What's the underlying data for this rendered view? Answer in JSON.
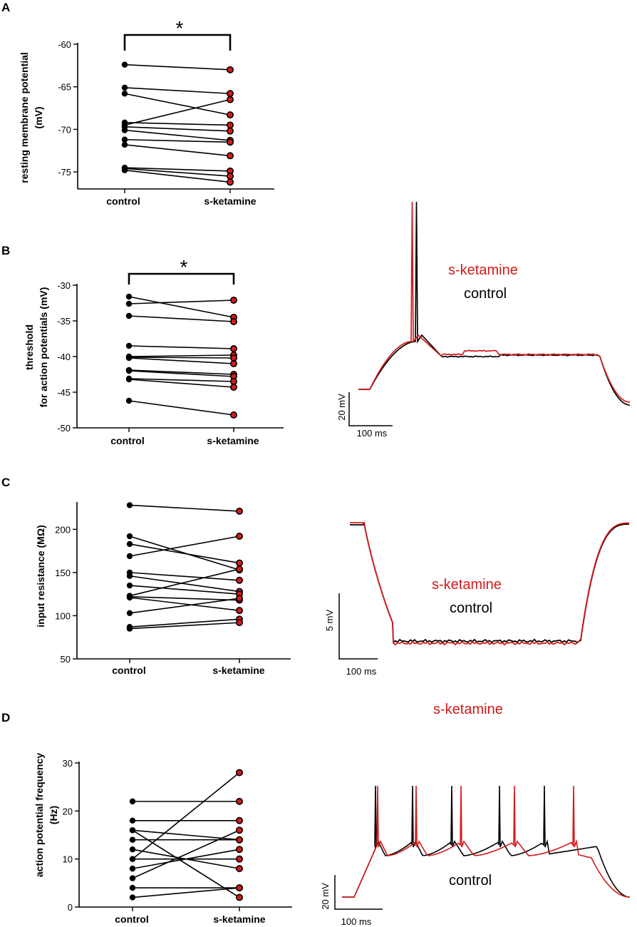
{
  "colors": {
    "control": "#000000",
    "ketamine": "#d41a1a"
  },
  "panels": [
    {
      "id": "A",
      "letter": "A",
      "ylabel_lines": [
        "resting membrane potential",
        "(mV)"
      ],
      "categories": [
        "control",
        "s-ketamine"
      ],
      "significance": "*"
    },
    {
      "id": "B",
      "letter": "B",
      "ylabel_lines": [
        "threshold",
        "for action potentials (mV)"
      ],
      "categories": [
        "control",
        "s-ketamine"
      ],
      "significance": "*"
    },
    {
      "id": "C",
      "letter": "C",
      "ylabel_lines": [
        "input resistance (MΩ)"
      ],
      "categories": [
        "control",
        "s-ketamine"
      ],
      "significance": ""
    },
    {
      "id": "D",
      "letter": "D",
      "ylabel_lines": [
        "action potential frequency",
        "(Hz)"
      ],
      "categories": [
        "control",
        "s-ketamine"
      ],
      "significance": ""
    }
  ],
  "traces": [
    {
      "id": "B",
      "legend_ketamine": "s-ketamine",
      "legend_control": "control",
      "scale_y": "20 mV",
      "scale_x": "100 ms"
    },
    {
      "id": "C",
      "legend_ketamine": "s-ketamine",
      "legend_control": "control",
      "scale_y": "5 mV",
      "scale_x": "100 ms"
    },
    {
      "id": "D",
      "legend_ketamine": "s-ketamine",
      "legend_control": "control",
      "scale_y": "20 mV",
      "scale_x": "100 ms"
    }
  ],
  "chart_data": [
    {
      "type": "scatter",
      "title": "A",
      "xlabel": "",
      "ylabel": "resting membrane potential (mV)",
      "categories": [
        "control",
        "s-ketamine"
      ],
      "ylim": [
        -77,
        -60
      ],
      "yticks": [
        -75,
        -70,
        -65,
        -60
      ],
      "paired_values": [
        [
          -62.4,
          -63.0
        ],
        [
          -65.1,
          -65.8
        ],
        [
          -65.8,
          -68.3
        ],
        [
          -69.2,
          -69.5
        ],
        [
          -69.5,
          -66.5
        ],
        [
          -69.7,
          -70.2
        ],
        [
          -70.1,
          -71.3
        ],
        [
          -71.2,
          -71.5
        ],
        [
          -71.8,
          -73.1
        ],
        [
          -74.5,
          -74.9
        ],
        [
          -74.6,
          -75.5
        ],
        [
          -74.8,
          -76.2
        ]
      ],
      "significance": "*"
    },
    {
      "type": "scatter",
      "title": "B",
      "xlabel": "",
      "ylabel": "threshold for action potentials (mV)",
      "categories": [
        "control",
        "s-ketamine"
      ],
      "ylim": [
        -50,
        -30
      ],
      "yticks": [
        -50,
        -45,
        -40,
        -35,
        -30
      ],
      "paired_values": [
        [
          -31.6,
          -34.5
        ],
        [
          -32.6,
          -32.1
        ],
        [
          -34.3,
          -35.1
        ],
        [
          -38.5,
          -38.9
        ],
        [
          -40.0,
          -39.8
        ],
        [
          -40.1,
          -40.2
        ],
        [
          -40.2,
          -41.0
        ],
        [
          -41.9,
          -42.5
        ],
        [
          -42.0,
          -42.8
        ],
        [
          -43.1,
          -43.5
        ],
        [
          -43.2,
          -44.3
        ],
        [
          -46.2,
          -48.2
        ]
      ],
      "significance": "*"
    },
    {
      "type": "scatter",
      "title": "C",
      "xlabel": "",
      "ylabel": "input resistance (MΩ)",
      "categories": [
        "control",
        "s-ketamine"
      ],
      "ylim": [
        50,
        230
      ],
      "yticks": [
        50,
        100,
        150,
        200
      ],
      "paired_values": [
        [
          228,
          221
        ],
        [
          192,
          153
        ],
        [
          183,
          161
        ],
        [
          169,
          192
        ],
        [
          150,
          141
        ],
        [
          146,
          128
        ],
        [
          135,
          125
        ],
        [
          123,
          154
        ],
        [
          122,
          118
        ],
        [
          121,
          106
        ],
        [
          103,
          120
        ],
        [
          87,
          96
        ],
        [
          85,
          92
        ]
      ],
      "significance": ""
    },
    {
      "type": "scatter",
      "title": "D",
      "xlabel": "",
      "ylabel": "action potential frequency (Hz)",
      "categories": [
        "control",
        "s-ketamine"
      ],
      "ylim": [
        0,
        30
      ],
      "yticks": [
        0,
        10,
        20,
        30
      ],
      "paired_values": [
        [
          22,
          22
        ],
        [
          18,
          18
        ],
        [
          16,
          14
        ],
        [
          16,
          2
        ],
        [
          14,
          14
        ],
        [
          12,
          8
        ],
        [
          10,
          28
        ],
        [
          10,
          10
        ],
        [
          8,
          12
        ],
        [
          6,
          16
        ],
        [
          4,
          4
        ],
        [
          2,
          4
        ]
      ],
      "significance": ""
    }
  ]
}
